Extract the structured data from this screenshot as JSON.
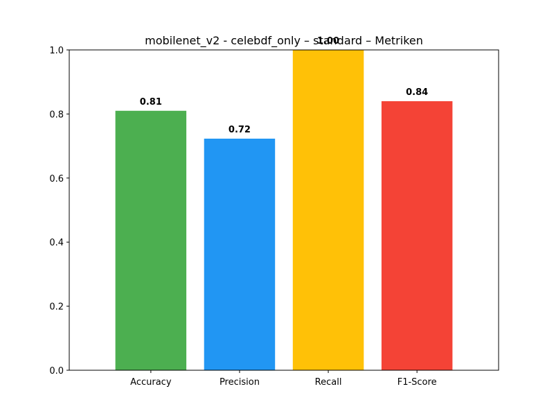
{
  "chart_data": {
    "type": "bar",
    "title": "mobilenet_v2 - celebdf_only – standard – Metriken",
    "xlabel": "",
    "ylabel": "",
    "categories": [
      "Accuracy",
      "Precision",
      "Recall",
      "F1-Score"
    ],
    "values": [
      0.81,
      0.723,
      1.0,
      0.84
    ],
    "value_labels": [
      "0.81",
      "0.72",
      "1.00",
      "0.84"
    ],
    "colors": [
      "#4caf50",
      "#2196f3",
      "#ffc107",
      "#f44336"
    ],
    "ylim": [
      0,
      1.0
    ],
    "yticks": [
      0.0,
      0.2,
      0.4,
      0.6,
      0.8,
      1.0
    ],
    "ytick_labels": [
      "0.0",
      "0.2",
      "0.4",
      "0.6",
      "0.8",
      "1.0"
    ],
    "grid": false,
    "legend": "none"
  }
}
